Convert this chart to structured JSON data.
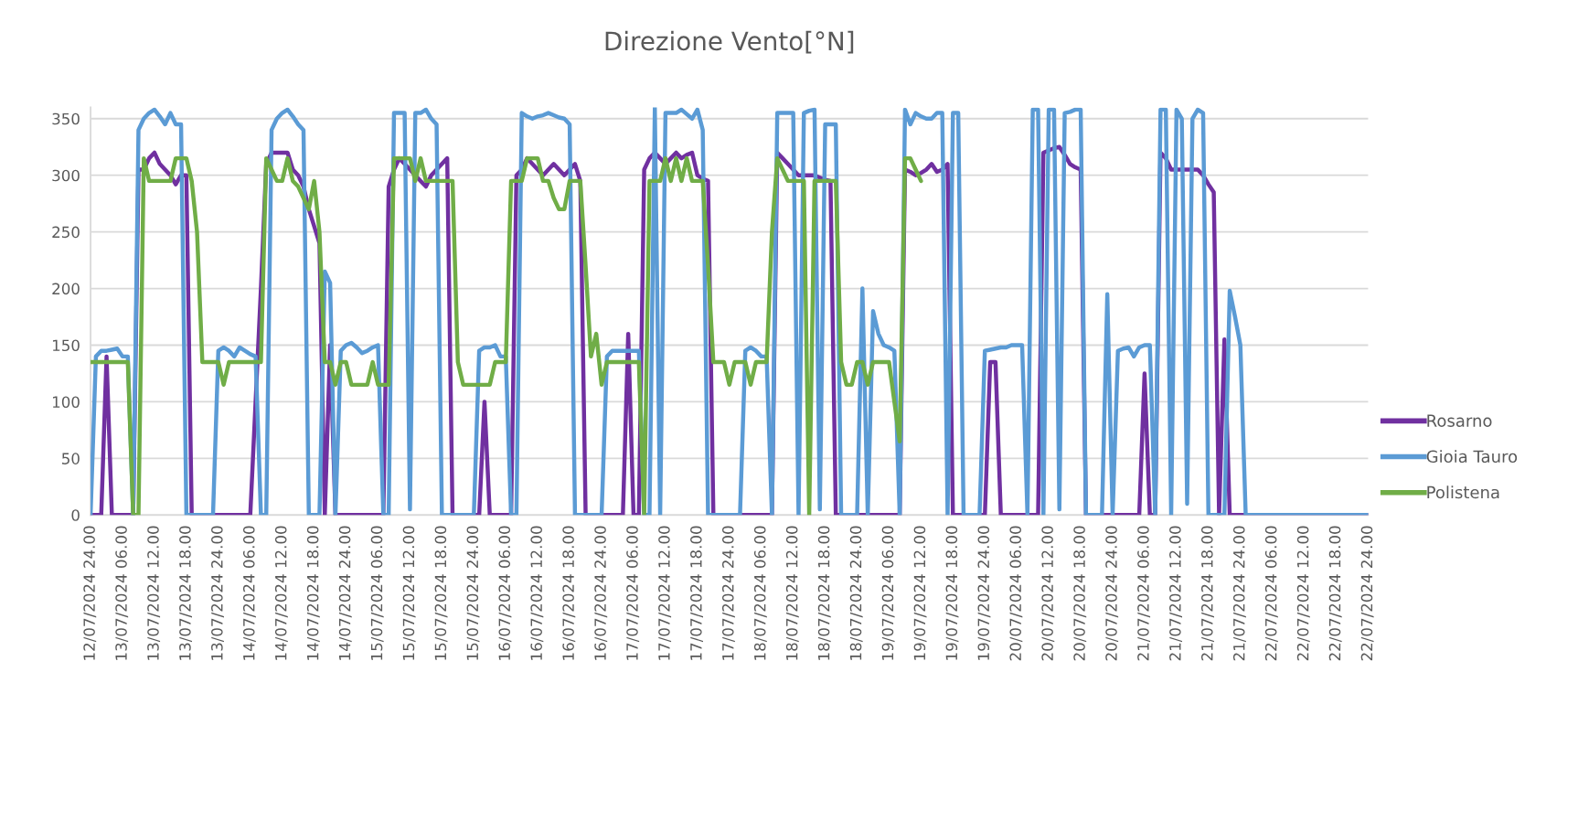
{
  "chart_data": {
    "type": "line",
    "title": "Direzione Vento[°N]",
    "ylim": [
      0,
      360
    ],
    "yticks": [
      0,
      50,
      100,
      150,
      200,
      250,
      300,
      350
    ],
    "categories": [
      "12/07/2024 24.00",
      null,
      null,
      null,
      null,
      null,
      "13/07/2024 06.00",
      null,
      null,
      null,
      null,
      null,
      "13/07/2024 12.00",
      null,
      null,
      null,
      null,
      null,
      "13/07/2024 18.00",
      null,
      null,
      null,
      null,
      null,
      "13/07/2024 24.00",
      null,
      null,
      null,
      null,
      null,
      "14/07/2024 06.00",
      null,
      null,
      null,
      null,
      null,
      "14/07/2024 12.00",
      null,
      null,
      null,
      null,
      null,
      "14/07/2024 18.00",
      null,
      null,
      null,
      null,
      null,
      "14/07/2024 24.00",
      null,
      null,
      null,
      null,
      null,
      "15/07/2024 06.00",
      null,
      null,
      null,
      null,
      null,
      "15/07/2024 12.00",
      null,
      null,
      null,
      null,
      null,
      "15/07/2024 18.00",
      null,
      null,
      null,
      null,
      null,
      "15/07/2024 24.00",
      null,
      null,
      null,
      null,
      null,
      "16/07/2024 06.00",
      null,
      null,
      null,
      null,
      null,
      "16/07/2024 12.00",
      null,
      null,
      null,
      null,
      null,
      "16/07/2024 18.00",
      null,
      null,
      null,
      null,
      null,
      "16/07/2024 24.00",
      null,
      null,
      null,
      null,
      null,
      "17/07/2024 06.00",
      null,
      null,
      null,
      null,
      null,
      "17/07/2024 12.00",
      null,
      null,
      null,
      null,
      null,
      "17/07/2024 18.00",
      null,
      null,
      null,
      null,
      null,
      "17/07/2024 24.00",
      null,
      null,
      null,
      null,
      null,
      "18/07/2024 06.00",
      null,
      null,
      null,
      null,
      null,
      "18/07/2024 12.00",
      null,
      null,
      null,
      null,
      null,
      "18/07/2024 18.00",
      null,
      null,
      null,
      null,
      null,
      "18/07/2024 24.00",
      null,
      null,
      null,
      null,
      null,
      "19/07/2024 06.00",
      null,
      null,
      null,
      null,
      null,
      "19/07/2024 12.00",
      null,
      null,
      null,
      null,
      null,
      "19/07/2024 18.00",
      null,
      null,
      null,
      null,
      null,
      "19/07/2024 24.00",
      null,
      null,
      null,
      null,
      null,
      "20/07/2024 06.00",
      null,
      null,
      null,
      null,
      null,
      "20/07/2024 12.00",
      null,
      null,
      null,
      null,
      null,
      "20/07/2024 18.00",
      null,
      null,
      null,
      null,
      null,
      "20/07/2024 24.00",
      null,
      null,
      null,
      null,
      null,
      "21/07/2024 06.00",
      null,
      null,
      null,
      null,
      null,
      "21/07/2024 12.00",
      null,
      null,
      null,
      null,
      null,
      "21/07/2024 18.00",
      null,
      null,
      null,
      null,
      null,
      "21/07/2024 24.00",
      null,
      null,
      null,
      null,
      null,
      "22/07/2024 06.00",
      null,
      null,
      null,
      null,
      null,
      "22/07/2024 12.00",
      null,
      null,
      null,
      null,
      null,
      "22/07/2024 18.00",
      null,
      null,
      null,
      null,
      null,
      "22/07/2024 24.00"
    ],
    "grid": "y",
    "legend": "right",
    "marker": "none",
    "line_style": "solid",
    "series": [
      {
        "name": "Rosarno",
        "color": "#7030a0",
        "values": [
          0,
          0,
          0,
          140,
          0,
          0,
          0,
          0,
          0,
          305,
          305,
          315,
          320,
          310,
          305,
          300,
          292,
          300,
          300,
          0,
          0,
          0,
          0,
          0,
          0,
          0,
          0,
          0,
          0,
          0,
          0,
          100,
          200,
          310,
          320,
          320,
          320,
          320,
          305,
          300,
          290,
          270,
          255,
          240,
          0,
          150,
          0,
          0,
          0,
          0,
          0,
          0,
          0,
          0,
          0,
          0,
          290,
          305,
          315,
          310,
          305,
          300,
          295,
          290,
          300,
          305,
          310,
          315,
          0,
          0,
          0,
          0,
          0,
          0,
          100,
          0,
          0,
          0,
          0,
          0,
          300,
          305,
          315,
          310,
          305,
          300,
          305,
          310,
          305,
          300,
          305,
          310,
          295,
          0,
          0,
          0,
          0,
          0,
          0,
          0,
          0,
          160,
          0,
          0,
          305,
          315,
          320,
          315,
          310,
          315,
          320,
          315,
          318,
          320,
          300,
          297,
          295,
          0,
          0,
          0,
          0,
          0,
          0,
          0,
          0,
          0,
          0,
          0,
          0,
          320,
          315,
          310,
          305,
          300,
          300,
          300,
          300,
          298,
          296,
          295,
          0,
          0,
          0,
          0,
          0,
          0,
          0,
          0,
          0,
          0,
          0,
          0,
          0,
          305,
          303,
          300,
          302,
          305,
          310,
          303,
          305,
          310,
          0,
          0,
          0,
          0,
          0,
          0,
          0,
          135,
          135,
          0,
          0,
          0,
          0,
          0,
          0,
          0,
          0,
          320,
          322,
          324,
          325,
          318,
          310,
          307,
          305,
          0,
          0,
          0,
          0,
          0,
          0,
          0,
          0,
          0,
          0,
          0,
          125,
          0,
          0,
          320,
          315,
          305,
          305,
          305,
          305,
          305,
          305,
          300,
          292,
          285,
          0,
          155,
          0,
          0,
          0,
          0,
          0,
          0,
          0,
          0,
          0,
          0,
          0,
          0,
          0,
          0,
          0,
          0,
          0,
          0,
          0,
          0,
          0,
          0,
          0,
          0,
          0,
          0,
          0
        ]
      },
      {
        "name": "Gioia Tauro",
        "color": "#5b9bd5",
        "values": [
          0,
          140,
          145,
          145,
          146,
          147,
          140,
          140,
          0,
          340,
          350,
          355,
          358,
          352,
          345,
          355,
          345,
          345,
          0,
          0,
          0,
          0,
          0,
          0,
          145,
          148,
          145,
          140,
          148,
          145,
          142,
          140,
          0,
          0,
          340,
          350,
          355,
          358,
          352,
          345,
          340,
          0,
          0,
          0,
          215,
          205,
          0,
          145,
          150,
          152,
          148,
          143,
          145,
          148,
          150,
          0,
          0,
          355,
          355,
          355,
          5,
          355,
          355,
          358,
          350,
          345,
          0,
          0,
          0,
          0,
          0,
          0,
          0,
          145,
          148,
          148,
          150,
          140,
          140,
          0,
          0,
          355,
          352,
          350,
          352,
          353,
          355,
          353,
          351,
          350,
          345,
          0,
          0,
          0,
          0,
          0,
          0,
          140,
          145,
          145,
          145,
          145,
          145,
          145,
          0,
          0,
          360,
          0,
          355,
          355,
          355,
          358,
          354,
          350,
          358,
          340,
          0,
          0,
          0,
          0,
          0,
          0,
          0,
          145,
          148,
          145,
          140,
          140,
          0,
          355,
          355,
          355,
          355,
          0,
          355,
          357,
          358,
          5,
          345,
          345,
          345,
          0,
          0,
          0,
          0,
          200,
          0,
          180,
          160,
          150,
          148,
          145,
          0,
          358,
          345,
          355,
          352,
          350,
          350,
          355,
          355,
          0,
          355,
          355,
          0,
          0,
          0,
          0,
          145,
          146,
          147,
          148,
          148,
          150,
          150,
          150,
          0,
          358,
          358,
          0,
          358,
          358,
          5,
          355,
          356,
          358,
          358,
          0,
          0,
          0,
          0,
          195,
          0,
          145,
          147,
          148,
          140,
          148,
          150,
          150,
          0,
          358,
          358,
          0,
          358,
          350,
          10,
          350,
          358,
          355,
          0,
          0,
          0,
          0,
          198,
          175,
          150,
          0,
          0,
          0,
          0,
          0,
          0,
          0,
          0,
          0,
          0,
          0,
          0,
          0,
          0,
          0,
          0,
          0,
          0,
          0,
          0,
          0,
          0,
          0,
          0
        ]
      },
      {
        "name": "Polistena",
        "color": "#70ad47",
        "values": [
          135,
          135,
          135,
          135,
          135,
          135,
          135,
          135,
          0,
          0,
          315,
          295,
          295,
          295,
          295,
          295,
          315,
          315,
          315,
          295,
          250,
          135,
          135,
          135,
          135,
          115,
          135,
          135,
          135,
          135,
          135,
          135,
          135,
          315,
          305,
          295,
          295,
          315,
          295,
          290,
          280,
          270,
          295,
          250,
          135,
          135,
          115,
          135,
          135,
          115,
          115,
          115,
          115,
          135,
          115,
          115,
          115,
          315,
          315,
          315,
          315,
          295,
          315,
          295,
          295,
          295,
          295,
          295,
          295,
          135,
          115,
          115,
          115,
          115,
          115,
          115,
          135,
          135,
          135,
          295,
          295,
          295,
          315,
          315,
          315,
          295,
          295,
          280,
          270,
          270,
          295,
          295,
          295,
          220,
          140,
          160,
          115,
          135,
          135,
          135,
          135,
          135,
          135,
          135,
          0,
          295,
          295,
          295,
          315,
          295,
          315,
          295,
          315,
          295,
          295,
          295,
          220,
          135,
          135,
          135,
          115,
          135,
          135,
          135,
          115,
          135,
          135,
          135,
          250,
          315,
          305,
          295,
          295,
          295,
          295,
          0,
          295,
          295,
          295,
          295,
          295,
          135,
          115,
          115,
          135,
          135,
          115,
          135,
          135,
          135,
          135,
          100,
          65,
          315,
          315,
          305,
          295,
          null,
          null,
          null,
          null,
          null,
          null,
          null,
          null,
          null,
          null,
          null,
          null,
          null,
          null,
          null,
          null,
          null,
          null,
          null,
          null,
          null,
          null,
          null,
          null,
          null,
          null,
          null,
          null,
          null,
          null,
          null,
          null,
          null,
          null,
          null,
          null,
          null,
          null,
          null,
          null,
          null,
          null,
          null,
          null,
          null,
          null,
          null,
          null,
          null,
          null,
          null,
          null,
          null,
          null,
          null,
          null,
          null,
          null,
          null,
          null,
          null,
          null,
          null,
          null,
          null,
          null,
          null,
          null,
          null,
          null,
          null,
          null,
          null,
          null,
          null,
          null,
          null,
          null,
          null,
          null,
          null,
          null,
          null,
          null
        ]
      }
    ]
  }
}
